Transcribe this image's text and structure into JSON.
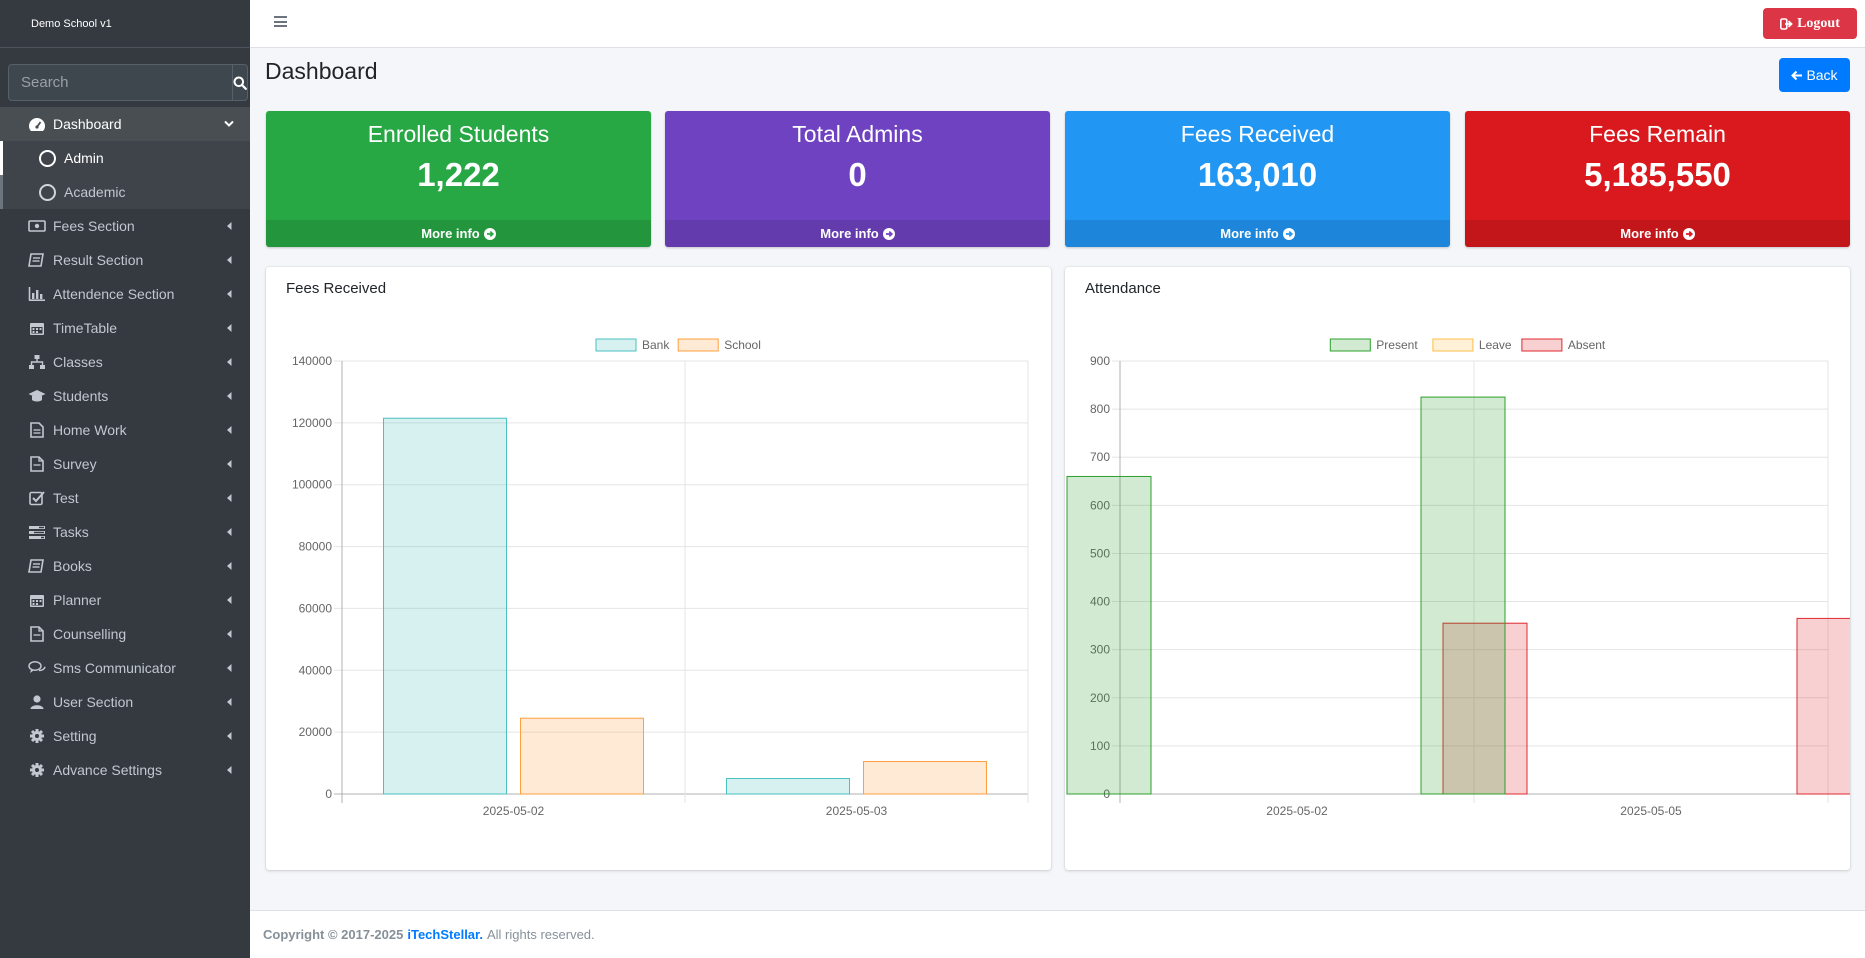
{
  "app": {
    "brand": "Demo School v1",
    "logout_label": "Logout"
  },
  "search": {
    "placeholder": "Search"
  },
  "sidebar": {
    "items": [
      {
        "label": "Dashboard",
        "icon": "tachometer-icon"
      },
      {
        "label": "Fees Section",
        "icon": "money-icon"
      },
      {
        "label": "Result Section",
        "icon": "book-icon"
      },
      {
        "label": "Attendence Section",
        "icon": "bar-chart-icon"
      },
      {
        "label": "TimeTable",
        "icon": "calendar-icon"
      },
      {
        "label": "Classes",
        "icon": "sitemap-icon"
      },
      {
        "label": "Students",
        "icon": "graduation-cap-icon"
      },
      {
        "label": "Home Work",
        "icon": "file-text-icon"
      },
      {
        "label": "Survey",
        "icon": "file-icon"
      },
      {
        "label": "Test",
        "icon": "check-square-icon"
      },
      {
        "label": "Tasks",
        "icon": "tasks-icon"
      },
      {
        "label": "Books",
        "icon": "book-icon"
      },
      {
        "label": "Planner",
        "icon": "calendar-icon"
      },
      {
        "label": "Counselling",
        "icon": "file-icon"
      },
      {
        "label": "Sms Communicator",
        "icon": "comments-icon"
      },
      {
        "label": "User Section",
        "icon": "user-icon"
      },
      {
        "label": "Setting",
        "icon": "gear-icon"
      },
      {
        "label": "Advance Settings",
        "icon": "gear-icon"
      }
    ],
    "dashboard_sub": [
      {
        "label": "Admin"
      },
      {
        "label": "Academic"
      }
    ]
  },
  "page": {
    "title": "Dashboard",
    "back_label": "Back"
  },
  "stats": [
    {
      "title": "Enrolled Students",
      "value": "1,222",
      "more": "More info",
      "color": "#28a745"
    },
    {
      "title": "Total Admins",
      "value": "0",
      "more": "More info",
      "color": "#6f42c1"
    },
    {
      "title": "Fees Received",
      "value": "163,010",
      "more": "More info",
      "color": "#2196f3"
    },
    {
      "title": "Fees Remain",
      "value": "5,185,550",
      "more": "More info",
      "color": "#d9191e"
    }
  ],
  "fees_card": {
    "title": "Fees Received"
  },
  "attendance_card": {
    "title": "Attendance"
  },
  "chart_data": [
    {
      "type": "bar",
      "title": "Fees Received",
      "categories": [
        "2025-05-02",
        "2025-05-03"
      ],
      "series": [
        {
          "name": "Bank",
          "values": [
            121500,
            5000
          ],
          "color": "#4bc0c0"
        },
        {
          "name": "School",
          "values": [
            24500,
            10500
          ],
          "color": "#ff9f40"
        }
      ],
      "ylim": [
        0,
        140000
      ],
      "yticks": [
        0,
        20000,
        40000,
        60000,
        80000,
        100000,
        120000,
        140000
      ],
      "grid": true,
      "legend": "top"
    },
    {
      "type": "bar",
      "title": "Attendance",
      "categories": [
        "2025-05-02",
        "2025-05-05"
      ],
      "series": [
        {
          "name": "Present",
          "values": [
            660,
            825
          ],
          "color": "#2ca02c"
        },
        {
          "name": "Leave",
          "values": [
            0,
            0
          ],
          "color": "#ffbf47"
        },
        {
          "name": "Absent",
          "values": [
            355,
            365
          ],
          "color": "#e0282f"
        }
      ],
      "ylim": [
        0,
        900
      ],
      "yticks": [
        0,
        100,
        200,
        300,
        400,
        500,
        600,
        700,
        800,
        900
      ],
      "grid": true,
      "legend": "top"
    }
  ],
  "footer": {
    "copyright": "Copyright © 2017-2025",
    "brand": "iTechStellar.",
    "rights": "All rights reserved."
  }
}
